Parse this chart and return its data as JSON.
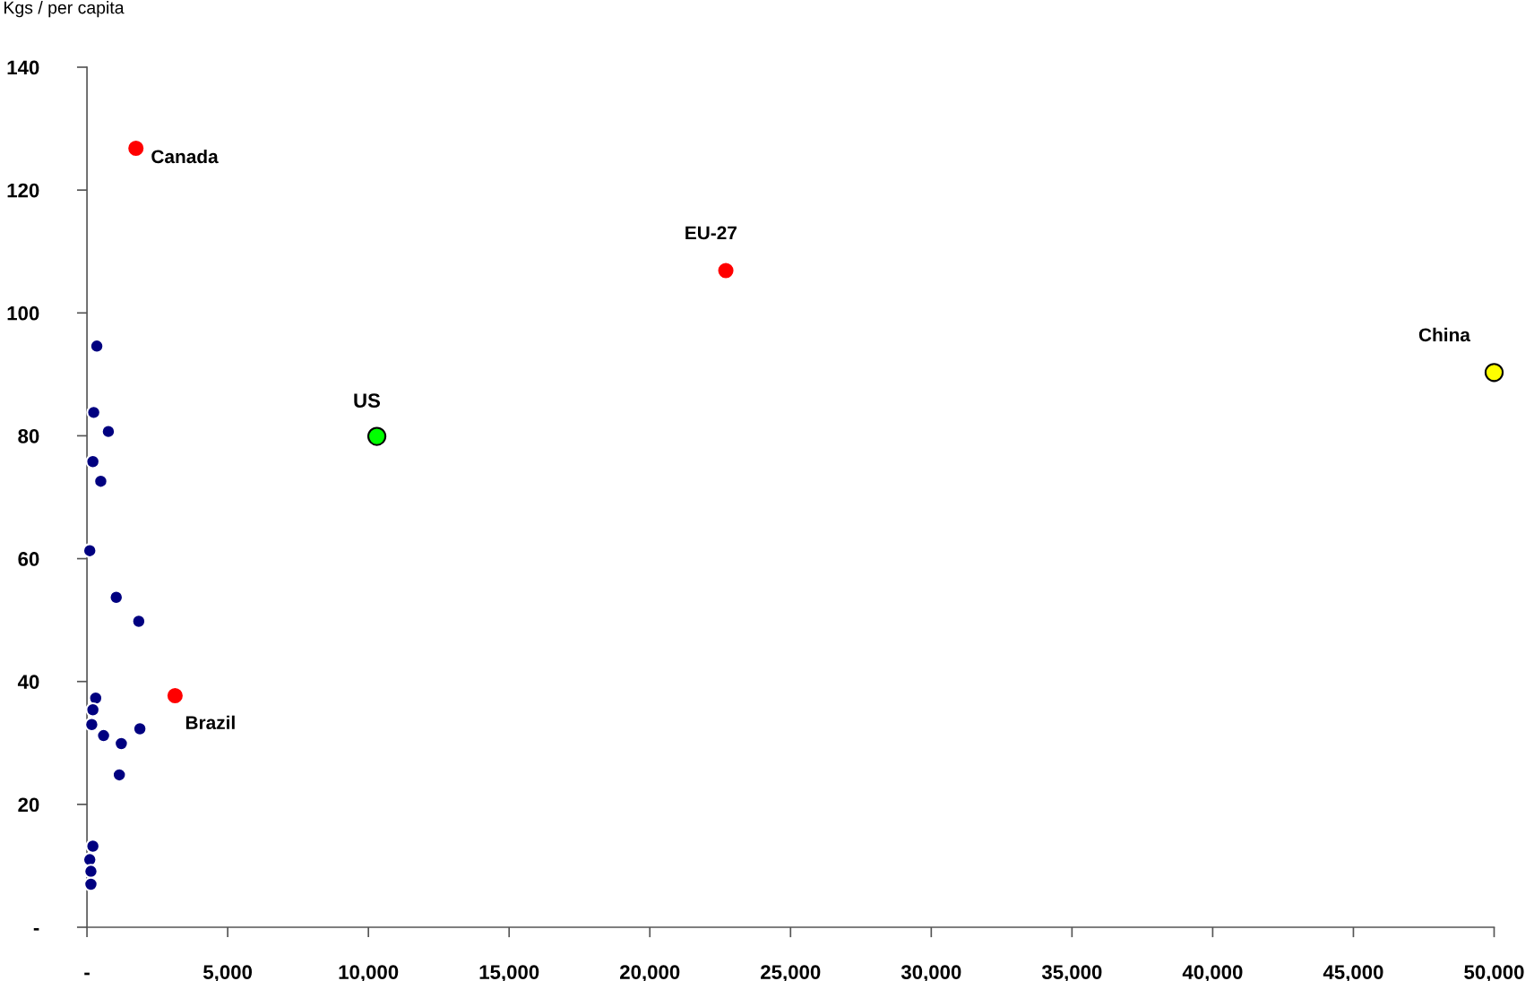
{
  "chart_data": {
    "type": "scatter",
    "ylabel": "Kgs / per capita",
    "xlim": [
      0,
      50000
    ],
    "ylim": [
      0,
      140
    ],
    "xticks": [
      {
        "value": 0,
        "label": "-"
      },
      {
        "value": 5000,
        "label": "5,000"
      },
      {
        "value": 10000,
        "label": "10,000"
      },
      {
        "value": 15000,
        "label": "15,000"
      },
      {
        "value": 20000,
        "label": "20,000"
      },
      {
        "value": 25000,
        "label": "25,000"
      },
      {
        "value": 30000,
        "label": "30,000"
      },
      {
        "value": 35000,
        "label": "35,000"
      },
      {
        "value": 40000,
        "label": "40,000"
      },
      {
        "value": 45000,
        "label": "45,000"
      },
      {
        "value": 50000,
        "label": "50,000"
      }
    ],
    "yticks": [
      {
        "value": 0,
        "label": "-"
      },
      20,
      40,
      60,
      80,
      100,
      120,
      140
    ],
    "grid": false,
    "legend": false,
    "marker": "circle",
    "series": [
      {
        "color": "#000080",
        "x": [
          350,
          240,
          760,
          210,
          490,
          100,
          1040,
          1840,
          310,
          210,
          170,
          1880,
          590,
          1220,
          1150,
          210,
          100,
          140,
          140
        ],
        "values": [
          94.6,
          83.8,
          80.7,
          75.8,
          72.6,
          61.3,
          53.7,
          49.8,
          37.3,
          35.4,
          33.0,
          32.3,
          31.2,
          29.9,
          24.8,
          13.2,
          11.0,
          9.1,
          7.0
        ]
      },
      {
        "name": "Canada",
        "color": "#ff0000",
        "x": [
          1740
        ],
        "values": [
          126.8
        ]
      },
      {
        "name": "EU-27",
        "color": "#ff0000",
        "x": [
          22700
        ],
        "values": [
          106.9
        ]
      },
      {
        "name": "China",
        "color": "#ffff00",
        "x": [
          50000
        ],
        "values": [
          90.3
        ]
      },
      {
        "name": "US",
        "color": "#00ff00",
        "x": [
          10300
        ],
        "values": [
          79.9
        ]
      },
      {
        "name": "Brazil",
        "color": "#ff0000",
        "x": [
          3130
        ],
        "values": [
          37.7
        ]
      }
    ]
  }
}
